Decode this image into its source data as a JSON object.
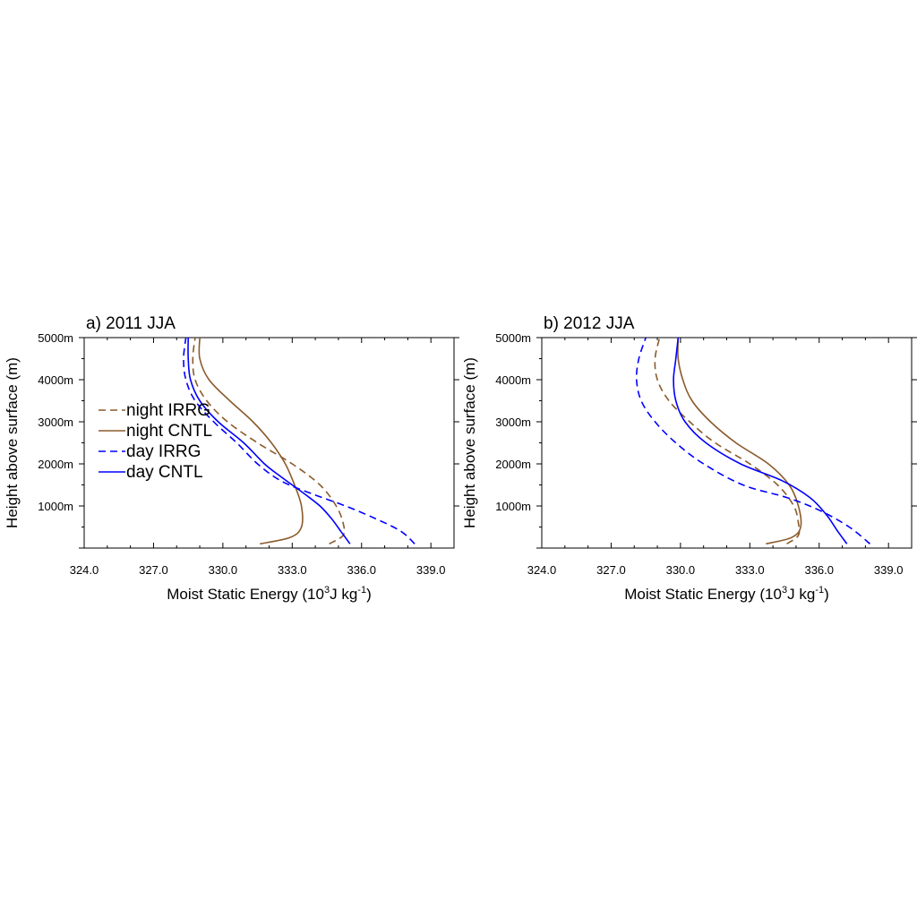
{
  "chart_data": [
    {
      "type": "line",
      "title": "a) 2011 JJA",
      "xlabel": "Moist Static Energy (10",
      "xlabel_sup": "3",
      "xlabel_mid": "J kg",
      "xlabel_sup2": "-1",
      "xlabel_end": ")",
      "ylabel": "Height above surface (m)",
      "xlim": [
        324.0,
        340.0
      ],
      "ylim": [
        0,
        5000
      ],
      "xticks": [
        "324.0",
        "327.0",
        "330.0",
        "333.0",
        "336.0",
        "339.0"
      ],
      "xtick_values": [
        324,
        327,
        330,
        333,
        336,
        339
      ],
      "yticks": [
        "1000m",
        "2000m",
        "3000m",
        "4000m",
        "5000m"
      ],
      "ytick_values": [
        1000,
        2000,
        3000,
        4000,
        5000
      ],
      "legend": "left",
      "series": [
        {
          "name": "night IRRG",
          "color": "#8B5A2B",
          "dash": true,
          "points": [
            [
              334.6,
              100
            ],
            [
              335.2,
              300
            ],
            [
              335.2,
              600
            ],
            [
              334.9,
              1000
            ],
            [
              334.2,
              1500
            ],
            [
              333.0,
              2000
            ],
            [
              331.5,
              2500
            ],
            [
              330.2,
              3000
            ],
            [
              329.3,
              3500
            ],
            [
              328.8,
              4000
            ],
            [
              328.7,
              4500
            ],
            [
              328.8,
              5000
            ]
          ]
        },
        {
          "name": "night CNTL",
          "color": "#8B5A2B",
          "dash": false,
          "points": [
            [
              331.6,
              100
            ],
            [
              332.9,
              250
            ],
            [
              333.4,
              500
            ],
            [
              333.4,
              1000
            ],
            [
              333.1,
              1500
            ],
            [
              332.7,
              2000
            ],
            [
              332.1,
              2500
            ],
            [
              331.3,
              3000
            ],
            [
              330.3,
              3500
            ],
            [
              329.4,
              4000
            ],
            [
              329.0,
              4500
            ],
            [
              329.0,
              5000
            ]
          ]
        },
        {
          "name": "day IRRG",
          "color": "#0000FF",
          "dash": true,
          "points": [
            [
              338.3,
              100
            ],
            [
              337.7,
              400
            ],
            [
              336.6,
              700
            ],
            [
              335.3,
              1000
            ],
            [
              333.8,
              1300
            ],
            [
              332.5,
              1600
            ],
            [
              331.5,
              2000
            ],
            [
              330.6,
              2500
            ],
            [
              329.6,
              3000
            ],
            [
              328.8,
              3500
            ],
            [
              328.4,
              4000
            ],
            [
              328.3,
              4500
            ],
            [
              328.4,
              5000
            ]
          ]
        },
        {
          "name": "day CNTL",
          "color": "#0000FF",
          "dash": false,
          "points": [
            [
              335.5,
              100
            ],
            [
              335.1,
              400
            ],
            [
              334.7,
              700
            ],
            [
              334.2,
              1000
            ],
            [
              333.5,
              1300
            ],
            [
              332.5,
              1700
            ],
            [
              331.8,
              2000
            ],
            [
              330.9,
              2500
            ],
            [
              329.8,
              3000
            ],
            [
              329.0,
              3500
            ],
            [
              328.6,
              4000
            ],
            [
              328.5,
              4500
            ],
            [
              328.5,
              5000
            ]
          ]
        }
      ]
    },
    {
      "type": "line",
      "title": "b) 2012 JJA",
      "xlabel": "Moist Static Energy (10",
      "xlabel_sup": "3",
      "xlabel_mid": "J kg",
      "xlabel_sup2": "-1",
      "xlabel_end": ")",
      "ylabel": "Height above surface (m)",
      "xlim": [
        324.0,
        340.0
      ],
      "ylim": [
        0,
        5000
      ],
      "xticks": [
        "324.0",
        "327.0",
        "330.0",
        "333.0",
        "336.0",
        "339.0"
      ],
      "xtick_values": [
        324,
        327,
        330,
        333,
        336,
        339
      ],
      "yticks": [
        "1000m",
        "2000m",
        "3000m",
        "4000m",
        "5000m"
      ],
      "ytick_values": [
        1000,
        2000,
        3000,
        4000,
        5000
      ],
      "legend": "none",
      "series": [
        {
          "name": "night IRRG",
          "color": "#8B5A2B",
          "dash": true,
          "points": [
            [
              334.6,
              100
            ],
            [
              335.1,
              300
            ],
            [
              335.1,
              600
            ],
            [
              334.9,
              1000
            ],
            [
              334.2,
              1500
            ],
            [
              333.0,
              2000
            ],
            [
              331.5,
              2500
            ],
            [
              330.4,
              3000
            ],
            [
              329.5,
              3500
            ],
            [
              329.0,
              4000
            ],
            [
              328.9,
              4500
            ],
            [
              329.1,
              5000
            ]
          ]
        },
        {
          "name": "night CNTL",
          "color": "#8B5A2B",
          "dash": false,
          "points": [
            [
              333.7,
              100
            ],
            [
              334.8,
              250
            ],
            [
              335.2,
              500
            ],
            [
              335.1,
              1000
            ],
            [
              334.7,
              1500
            ],
            [
              333.8,
              2000
            ],
            [
              332.4,
              2500
            ],
            [
              331.3,
              3000
            ],
            [
              330.5,
              3500
            ],
            [
              330.1,
              4000
            ],
            [
              329.9,
              4500
            ],
            [
              329.9,
              5000
            ]
          ]
        },
        {
          "name": "day IRRG",
          "color": "#0000FF",
          "dash": true,
          "points": [
            [
              338.2,
              100
            ],
            [
              337.3,
              500
            ],
            [
              336.0,
              900
            ],
            [
              334.6,
              1200
            ],
            [
              332.7,
              1500
            ],
            [
              331.0,
              2000
            ],
            [
              329.8,
              2500
            ],
            [
              328.9,
              3000
            ],
            [
              328.3,
              3500
            ],
            [
              328.1,
              4000
            ],
            [
              328.2,
              4500
            ],
            [
              328.5,
              5000
            ]
          ]
        },
        {
          "name": "day CNTL",
          "color": "#0000FF",
          "dash": false,
          "points": [
            [
              337.2,
              100
            ],
            [
              336.8,
              400
            ],
            [
              336.3,
              800
            ],
            [
              335.6,
              1200
            ],
            [
              334.4,
              1600
            ],
            [
              332.6,
              2000
            ],
            [
              331.1,
              2500
            ],
            [
              330.2,
              3000
            ],
            [
              329.8,
              3500
            ],
            [
              329.7,
              4000
            ],
            [
              329.8,
              4500
            ],
            [
              329.9,
              5000
            ]
          ]
        }
      ]
    }
  ]
}
